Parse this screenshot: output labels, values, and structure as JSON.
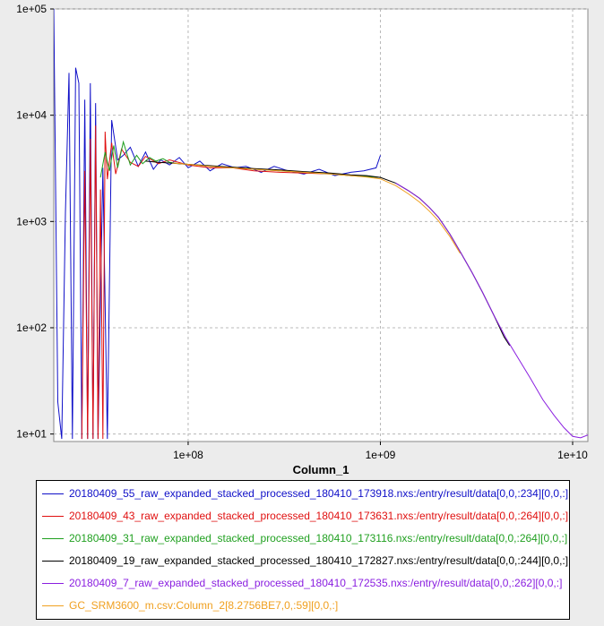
{
  "chart_data": {
    "type": "line",
    "x_scale": "log",
    "y_scale": "log",
    "xlabel": "Column_1",
    "ylabel": "",
    "xlim": [
      20000000,
      12000000000
    ],
    "ylim": [
      8.5,
      100000
    ],
    "x_ticks": [
      {
        "value": 100000000,
        "label": "1e+08"
      },
      {
        "value": 1000000000,
        "label": "1e+09"
      },
      {
        "value": 10000000000,
        "label": "1e+10"
      }
    ],
    "y_ticks": [
      {
        "value": 10,
        "label": "1e+01"
      },
      {
        "value": 100,
        "label": "1e+02"
      },
      {
        "value": 1000,
        "label": "1e+03"
      },
      {
        "value": 10000,
        "label": "1e+04"
      },
      {
        "value": 100000,
        "label": "1e+05"
      }
    ],
    "grid": true,
    "legend_position": "bottom",
    "series": [
      {
        "name": "20180409_55_raw_expanded_stacked_processed_180410_173918.nxs:/entry/result/data[0,0,:234][0,0,:]",
        "color": "#1010c8",
        "x": [
          20000000,
          21000000,
          22000000,
          23000000,
          24000000,
          25000000,
          26000000,
          27000000,
          28000000,
          29000000,
          30000000,
          31000000,
          32000000,
          33000000,
          34000000,
          36000000,
          38000000,
          40000000,
          43000000,
          46000000,
          50000000,
          55000000,
          60000000,
          66000000,
          72000000,
          80000000,
          90000000,
          100000000,
          115000000,
          130000000,
          150000000,
          175000000,
          200000000,
          240000000,
          280000000,
          330000000,
          400000000,
          480000000,
          580000000,
          700000000,
          820000000,
          950000000,
          1000000000
        ],
        "y": [
          100000,
          20,
          9,
          1200,
          25000,
          9,
          28000,
          20000,
          9,
          14000,
          9,
          20000,
          9,
          13000,
          9,
          3200,
          9,
          9000,
          3800,
          4200,
          5000,
          3300,
          4500,
          3100,
          3800,
          3400,
          4000,
          3200,
          3700,
          3000,
          3500,
          3200,
          3300,
          2900,
          3300,
          3000,
          2800,
          3100,
          2700,
          2900,
          3000,
          3200,
          4200
        ]
      },
      {
        "name": "20180409_43_raw_expanded_stacked_processed_180410_173631.nxs:/entry/result/data[0,0,:264][0,0,:]",
        "color": "#e01010",
        "x": [
          28000000,
          29000000,
          30000000,
          31000000,
          32000000,
          33000000,
          34000000,
          35000000,
          36000000,
          37000000,
          38000000,
          40000000,
          42000000,
          45000000,
          50000000,
          55000000,
          60000000,
          70000000,
          80000000,
          100000000,
          130000000,
          170000000,
          220000000,
          300000000,
          400000000,
          550000000,
          700000000,
          850000000,
          1000000000
        ],
        "y": [
          9,
          3000,
          9,
          6000,
          9,
          8000,
          9,
          2000,
          9,
          7000,
          2500,
          5500,
          2800,
          4800,
          3600,
          3300,
          4100,
          3500,
          3800,
          3400,
          3200,
          3200,
          3000,
          2900,
          2850,
          2800,
          2700,
          2650,
          2600
        ]
      },
      {
        "name": "20180409_31_raw_expanded_stacked_processed_180410_173116.nxs:/entry/result/data[0,0,:264][0,0,:]",
        "color": "#20a020",
        "x": [
          35000000,
          37000000,
          39000000,
          41000000,
          43000000,
          46000000,
          50000000,
          54000000,
          58000000,
          63000000,
          68000000,
          74000000,
          80000000,
          90000000,
          100000000,
          120000000,
          150000000,
          200000000,
          300000000,
          400000000,
          550000000,
          700000000,
          850000000,
          1000000000
        ],
        "y": [
          2600,
          4500,
          3000,
          5200,
          3200,
          5600,
          3400,
          4200,
          3500,
          4000,
          3700,
          3900,
          3600,
          3500,
          3450,
          3350,
          3250,
          3150,
          3000,
          2900,
          2800,
          2700,
          2650,
          2600
        ]
      },
      {
        "name": "20180409_19_raw_expanded_stacked_processed_180410_172827.nxs:/entry/result/data[0,0,:244][0,0,:]",
        "color": "#000000",
        "x": [
          60000000,
          70000000,
          80000000,
          100000000,
          130000000,
          170000000,
          220000000,
          300000000,
          400000000,
          550000000,
          700000000,
          850000000,
          1000000000,
          1200000000,
          1400000000,
          1600000000,
          1800000000,
          2000000000,
          2300000000,
          2600000000,
          3000000000,
          3400000000,
          3900000000,
          4400000000,
          4700000000
        ],
        "y": [
          3700,
          3600,
          3550,
          3450,
          3350,
          3250,
          3150,
          3050,
          2950,
          2850,
          2750,
          2700,
          2600,
          2300,
          1950,
          1650,
          1350,
          1100,
          760,
          520,
          330,
          215,
          130,
          82,
          68
        ]
      },
      {
        "name": "20180409_7_raw_expanded_stacked_processed_180410_172535.nxs:/entry/result/data[0,0,:262][0,0,:]",
        "color": "#8a1ee0",
        "x": [
          1200000000,
          1400000000,
          1600000000,
          1800000000,
          2000000000,
          2300000000,
          2600000000,
          3000000000,
          3400000000,
          3900000000,
          4500000000,
          5200000000,
          6000000000,
          7000000000,
          8000000000,
          9000000000,
          10000000000,
          11000000000,
          12000000000
        ],
        "y": [
          2300,
          1950,
          1650,
          1350,
          1100,
          760,
          520,
          330,
          215,
          130,
          80,
          52,
          34,
          21,
          15,
          11.5,
          9.5,
          9.2,
          9.8
        ]
      },
      {
        "name": "GC_SRM3600_m.csv:Column_2[8.2756BE7,0,:59][0,0,:]",
        "color": "#f0a020",
        "x": [
          82756000,
          100000000,
          130000000,
          170000000,
          220000000,
          300000000,
          400000000,
          550000000,
          700000000,
          850000000,
          1000000000,
          1200000000,
          1400000000,
          1600000000,
          1800000000,
          2000000000,
          2300000000,
          2600000000
        ],
        "y": [
          3550,
          3450,
          3300,
          3200,
          3100,
          3000,
          2900,
          2800,
          2700,
          2620,
          2520,
          2180,
          1820,
          1520,
          1250,
          1020,
          720,
          500
        ]
      }
    ]
  }
}
